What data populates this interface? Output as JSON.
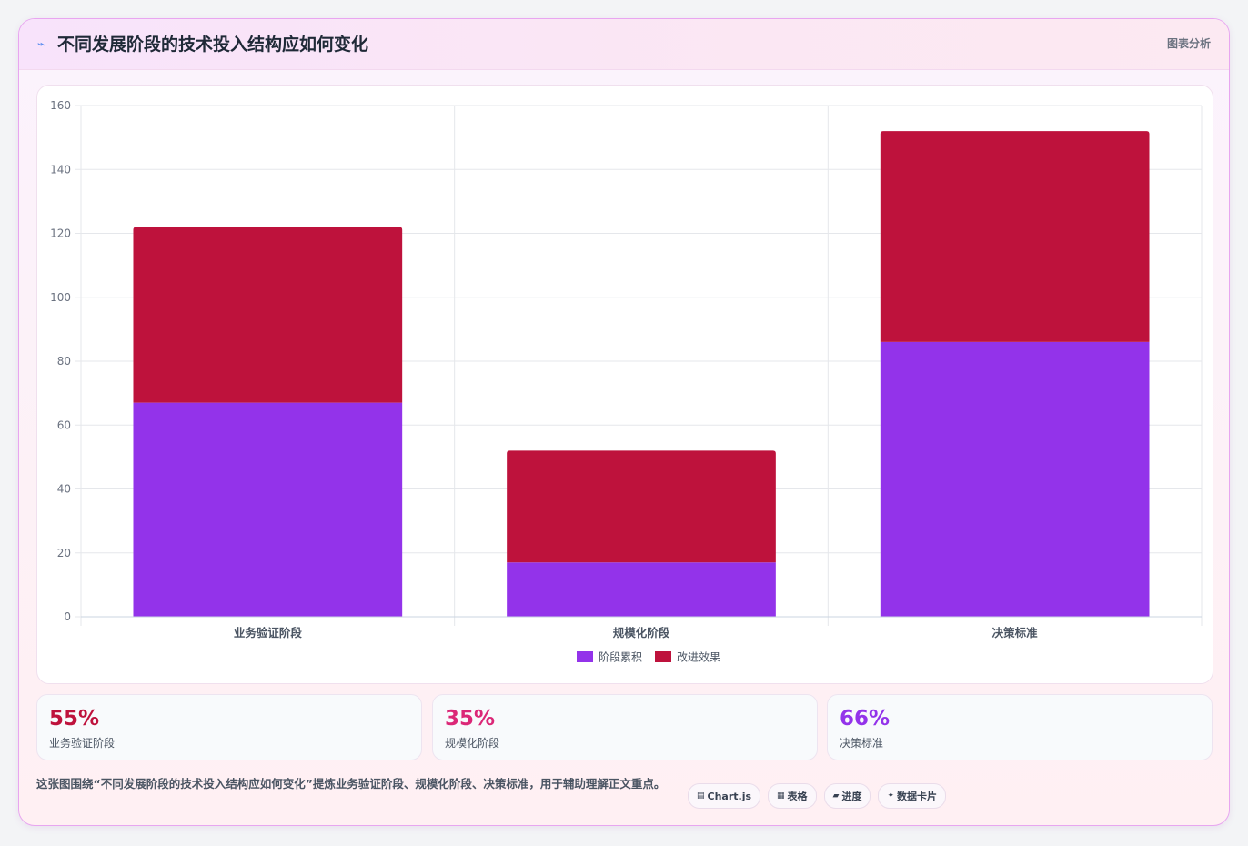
{
  "header": {
    "icon": "spark-icon",
    "title": "不同发展阶段的技术投入结构应如何变化",
    "right_label": "图表分析"
  },
  "chart_data": {
    "type": "bar",
    "stacked": true,
    "categories": [
      "业务验证阶段",
      "规模化阶段",
      "决策标准"
    ],
    "series": [
      {
        "name": "阶段累积",
        "values": [
          67,
          17,
          86
        ],
        "color": "#9333ea"
      },
      {
        "name": "改进效果",
        "values": [
          55,
          35,
          66
        ],
        "color": "#be123c"
      }
    ],
    "ylim": [
      0,
      160
    ],
    "yticks": [
      0,
      20,
      40,
      60,
      80,
      100,
      120,
      140,
      160
    ],
    "grid": true,
    "legend": "bottom"
  },
  "stats": [
    {
      "value": "55%",
      "label": "业务验证阶段",
      "color": "#be123c"
    },
    {
      "value": "35%",
      "label": "规模化阶段",
      "color": "#db2777"
    },
    {
      "value": "66%",
      "label": "决策标准",
      "color": "#9333ea"
    }
  ],
  "footer": {
    "text": "这张图围绕“不同发展阶段的技术投入结构应如何变化”提炼业务验证阶段、规模化阶段、决策标准，用于辅助理解正文重点。",
    "tags": [
      {
        "icon": "▤",
        "label": "Chart.js"
      },
      {
        "icon": "▦",
        "label": "表格"
      },
      {
        "icon": "▰",
        "label": "进度"
      },
      {
        "icon": "✦",
        "label": "数据卡片"
      }
    ]
  }
}
